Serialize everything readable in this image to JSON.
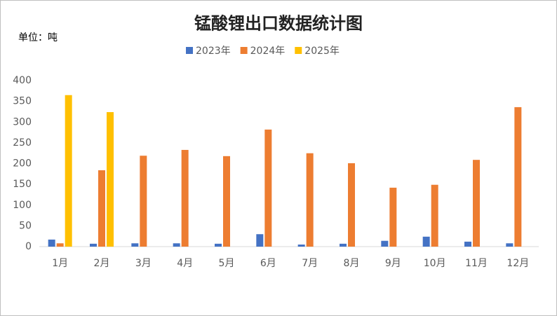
{
  "chart_data": {
    "type": "bar",
    "title": "锰酸锂出口数据统计图",
    "unit_label": "单位：吨",
    "categories": [
      "1月",
      "2月",
      "3月",
      "4月",
      "5月",
      "6月",
      "7月",
      "8月",
      "9月",
      "10月",
      "11月",
      "12月"
    ],
    "series": [
      {
        "name": "2023年",
        "color": "#4472c4",
        "values": [
          17,
          7,
          8,
          8,
          7,
          30,
          5,
          7,
          14,
          24,
          12,
          8
        ]
      },
      {
        "name": "2024年",
        "color": "#ed7d31",
        "values": [
          8,
          184,
          219,
          233,
          218,
          282,
          225,
          201,
          142,
          149,
          209,
          336
        ]
      },
      {
        "name": "2025年",
        "color": "#ffc000",
        "values": [
          365,
          324,
          null,
          null,
          null,
          null,
          null,
          null,
          null,
          null,
          null,
          null
        ]
      }
    ],
    "ylim": [
      0,
      400
    ],
    "yticks": [
      0,
      50,
      100,
      150,
      200,
      250,
      300,
      350,
      400
    ],
    "grid": false,
    "legend": "top"
  }
}
